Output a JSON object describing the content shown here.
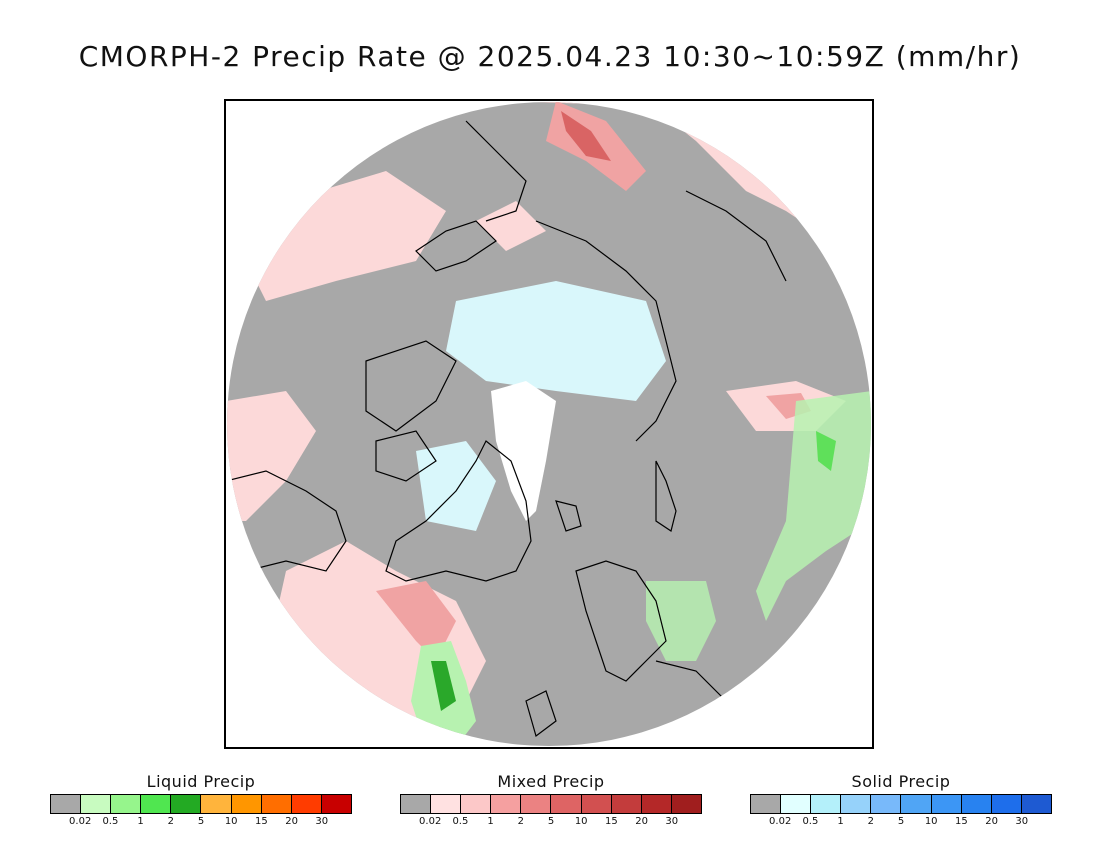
{
  "title": "CMORPH-2 Precip Rate @ 2025.04.23 10:30~10:59Z (mm/hr)",
  "map": {
    "projection": "north-polar-stereographic",
    "colors": {
      "background": "#a8a8a8",
      "outside": "#ffffff",
      "coastline": "#000000",
      "mixed_light": "#fcd9d9",
      "mixed_medium": "#f0a3a3",
      "mixed_heavy": "#d96464",
      "solid_light": "#d9f7fb",
      "sea_ice_white": "#ffffff",
      "liquid_light": "#b7f2b0",
      "liquid_medium": "#5fe05a",
      "liquid_heavy": "#2aa82a"
    }
  },
  "legends": [
    {
      "id": "liquid",
      "title": "Liquid Precip",
      "ticks": [
        "0.02",
        "0.5",
        "1",
        "2",
        "5",
        "10",
        "15",
        "20",
        "30"
      ],
      "colors": [
        "#a8a8a8",
        "#c8fbc0",
        "#96f58c",
        "#50e650",
        "#23aa23",
        "#ffb43c",
        "#ff9600",
        "#ff6e00",
        "#ff3c00",
        "#c80000"
      ]
    },
    {
      "id": "mixed",
      "title": "Mixed Precip",
      "ticks": [
        "0.02",
        "0.5",
        "1",
        "2",
        "5",
        "10",
        "15",
        "20",
        "30"
      ],
      "colors": [
        "#a8a8a8",
        "#ffe1e1",
        "#fcc8c8",
        "#f5a0a0",
        "#eb8282",
        "#de6464",
        "#d25050",
        "#c33c3c",
        "#b42828",
        "#a01e1e"
      ]
    },
    {
      "id": "solid",
      "title": "Solid Precip",
      "ticks": [
        "0.02",
        "0.5",
        "1",
        "2",
        "5",
        "10",
        "15",
        "20",
        "30"
      ],
      "colors": [
        "#a8a8a8",
        "#e1ffff",
        "#b4f0fa",
        "#96d2fa",
        "#78b9fa",
        "#50a5f5",
        "#3c96f5",
        "#2882f0",
        "#1e6eeb",
        "#1e5ad2"
      ]
    }
  ]
}
